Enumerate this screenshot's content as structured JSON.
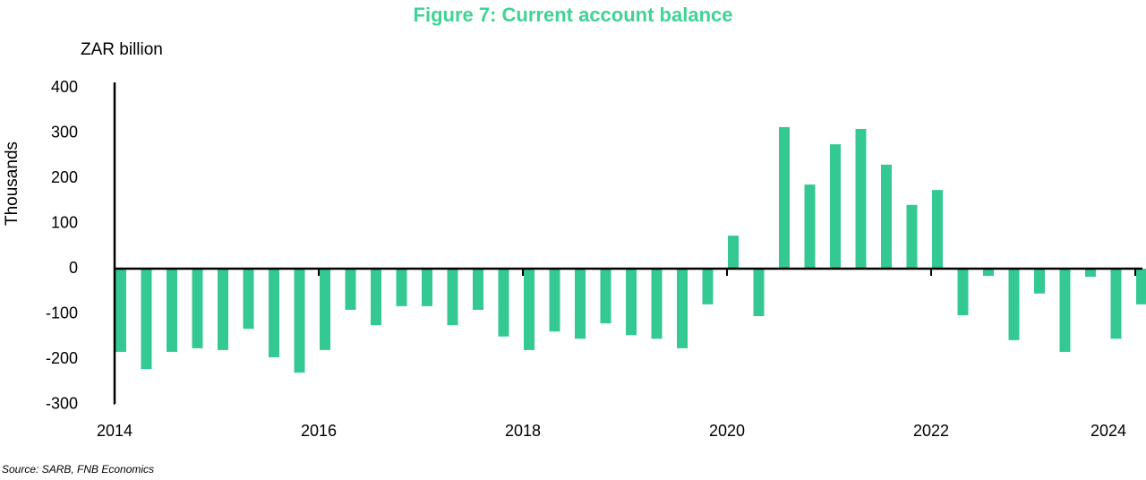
{
  "chart_data": {
    "type": "bar",
    "title": "Figure 7: Current account balance",
    "unit_label": "ZAR billion",
    "y_label": "Thousands",
    "source": "Source: SARB, FNB Economics",
    "color": "#34c993",
    "categories": [
      "2014",
      null,
      null,
      null,
      null,
      null,
      null,
      null,
      "2016",
      null,
      null,
      null,
      null,
      null,
      null,
      null,
      "2018",
      null,
      null,
      null,
      null,
      null,
      null,
      null,
      "2020",
      null,
      null,
      null,
      null,
      null,
      null,
      null,
      "2022",
      null,
      null,
      null,
      null,
      null,
      null,
      null,
      "2024"
    ],
    "values": [
      -184,
      -222,
      -184,
      -176,
      -180,
      -133,
      -196,
      -230,
      -180,
      -91,
      -125,
      -83,
      -83,
      -125,
      -91,
      -150,
      -180,
      -139,
      -155,
      -121,
      -147,
      -155,
      -176,
      -79,
      73,
      -105,
      313,
      186,
      275,
      309,
      230,
      141,
      174,
      -103,
      -16,
      -158,
      -55,
      -184,
      -18,
      -155,
      -79
    ],
    "ylim": [
      -300,
      400
    ],
    "yticks": [
      -300,
      -200,
      -100,
      0,
      100,
      200,
      300,
      400
    ]
  }
}
